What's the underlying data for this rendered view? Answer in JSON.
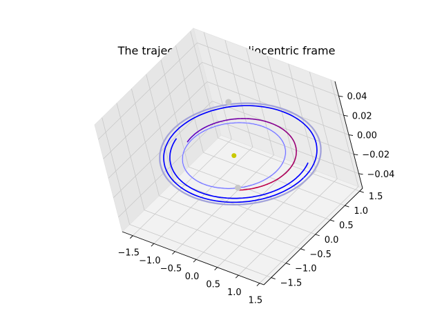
{
  "chart_data": {
    "type": "line",
    "projection": "3d",
    "title": "The trajectory in the heliocentric frame",
    "xlabel": "",
    "ylabel": "",
    "zlabel": "",
    "grid": true,
    "xlim": [
      -1.75,
      1.6
    ],
    "ylim": [
      -1.75,
      1.6
    ],
    "zlim": [
      -0.055,
      0.055
    ],
    "x_ticks": [
      "−1.5",
      "−1.0",
      "−0.5",
      "0.0",
      "0.5",
      "1.0",
      "1.5"
    ],
    "y_ticks": [
      "−1.5",
      "−1.0",
      "−0.5",
      "0.0",
      "0.5",
      "1.0",
      "1.5"
    ],
    "z_ticks": [
      "−0.04",
      "−0.02",
      "0.00",
      "0.02",
      "0.04"
    ],
    "x_tick_values": [
      -1.5,
      -1.0,
      -0.5,
      0.0,
      0.5,
      1.0,
      1.5
    ],
    "y_tick_values": [
      -1.5,
      -1.0,
      -0.5,
      0.0,
      0.5,
      1.0,
      1.5
    ],
    "z_tick_values": [
      -0.04,
      -0.02,
      0.0,
      0.02,
      0.04
    ],
    "colors": {
      "sun": "#c8c800",
      "earth_orbit": "#4040ff",
      "target_orbit": "#b0b0d0",
      "planet_marker": "#c8c8c8",
      "spacecraft_coast": "#0000ff",
      "transfer_start": "#c8003c",
      "transfer_end": "#5a00c8"
    },
    "sun": {
      "x": 0,
      "y": 0,
      "z": 0
    },
    "orbits": [
      {
        "role": "inner-thin-orbit",
        "a": 1.0,
        "b": 1.0,
        "cx": 0.0,
        "cy": 0.0
      },
      {
        "role": "outer-thin-orbit",
        "a": 1.58,
        "b": 1.53,
        "cx": 0.08,
        "cy": 0.1
      }
    ],
    "trajectory": [
      {
        "segment": "transfer",
        "a": 1.12,
        "b": 1.08,
        "cx": 0.07,
        "cy": 0.08,
        "t_start": -1.0,
        "t_end": 3.3
      },
      {
        "segment": "coast-1",
        "a": 1.38,
        "b": 1.34,
        "cx": 0.08,
        "cy": 0.1,
        "t_start": 3.3,
        "t_end": 6.6
      },
      {
        "segment": "coast-2",
        "a": 1.5,
        "b": 1.46,
        "cx": 0.08,
        "cy": 0.1,
        "t_start": 0.0,
        "t_end": 6.28
      }
    ],
    "planet_markers": [
      {
        "x": 0.63,
        "y": -0.77,
        "z": 0
      },
      {
        "x": -1.03,
        "y": 1.29,
        "z": 0
      }
    ]
  }
}
